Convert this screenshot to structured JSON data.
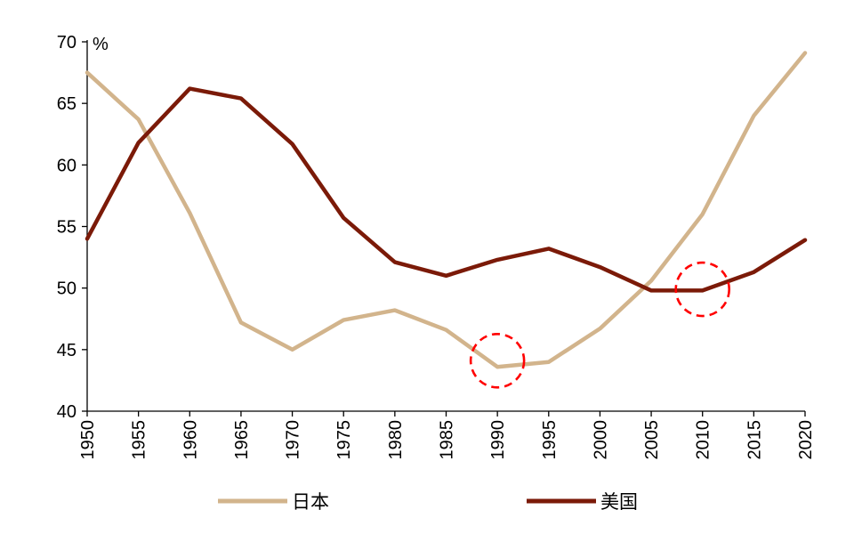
{
  "chart_data": {
    "type": "line",
    "x": [
      1950,
      1955,
      1960,
      1965,
      1970,
      1975,
      1980,
      1985,
      1990,
      1995,
      2000,
      2005,
      2010,
      2015,
      2020
    ],
    "xtick_labels": [
      "1950",
      "1955",
      "1960",
      "1965",
      "1970",
      "1975",
      "1980",
      "1985",
      "1990",
      "1995",
      "2000",
      "2005",
      "2010",
      "2015",
      "2020"
    ],
    "yticks": [
      40,
      45,
      50,
      55,
      60,
      65,
      70
    ],
    "ytick_labels": [
      "40",
      "45",
      "50",
      "55",
      "60",
      "65",
      "70"
    ],
    "ylim": [
      40,
      70
    ],
    "xlim": [
      1950,
      2020
    ],
    "unit_label": "%",
    "grid": false,
    "legend_position": "bottom",
    "series": [
      {
        "name": "日本",
        "color": "#d2b48c",
        "values": [
          67.5,
          63.7,
          56.1,
          47.2,
          45.0,
          47.4,
          48.2,
          46.6,
          43.6,
          44.0,
          46.7,
          50.6,
          56.0,
          64.0,
          69.1
        ]
      },
      {
        "name": "美国",
        "color": "#7b1a08",
        "values": [
          54.0,
          61.8,
          66.2,
          65.4,
          61.7,
          55.7,
          52.1,
          51.0,
          52.3,
          53.2,
          51.7,
          49.8,
          49.8,
          51.3,
          53.9
        ]
      }
    ],
    "annotations": [
      {
        "type": "dashed-circle",
        "x": 1990,
        "y": 44.1,
        "color": "#ff0000"
      },
      {
        "type": "dashed-circle",
        "x": 2010,
        "y": 49.9,
        "color": "#ff0000"
      }
    ]
  }
}
